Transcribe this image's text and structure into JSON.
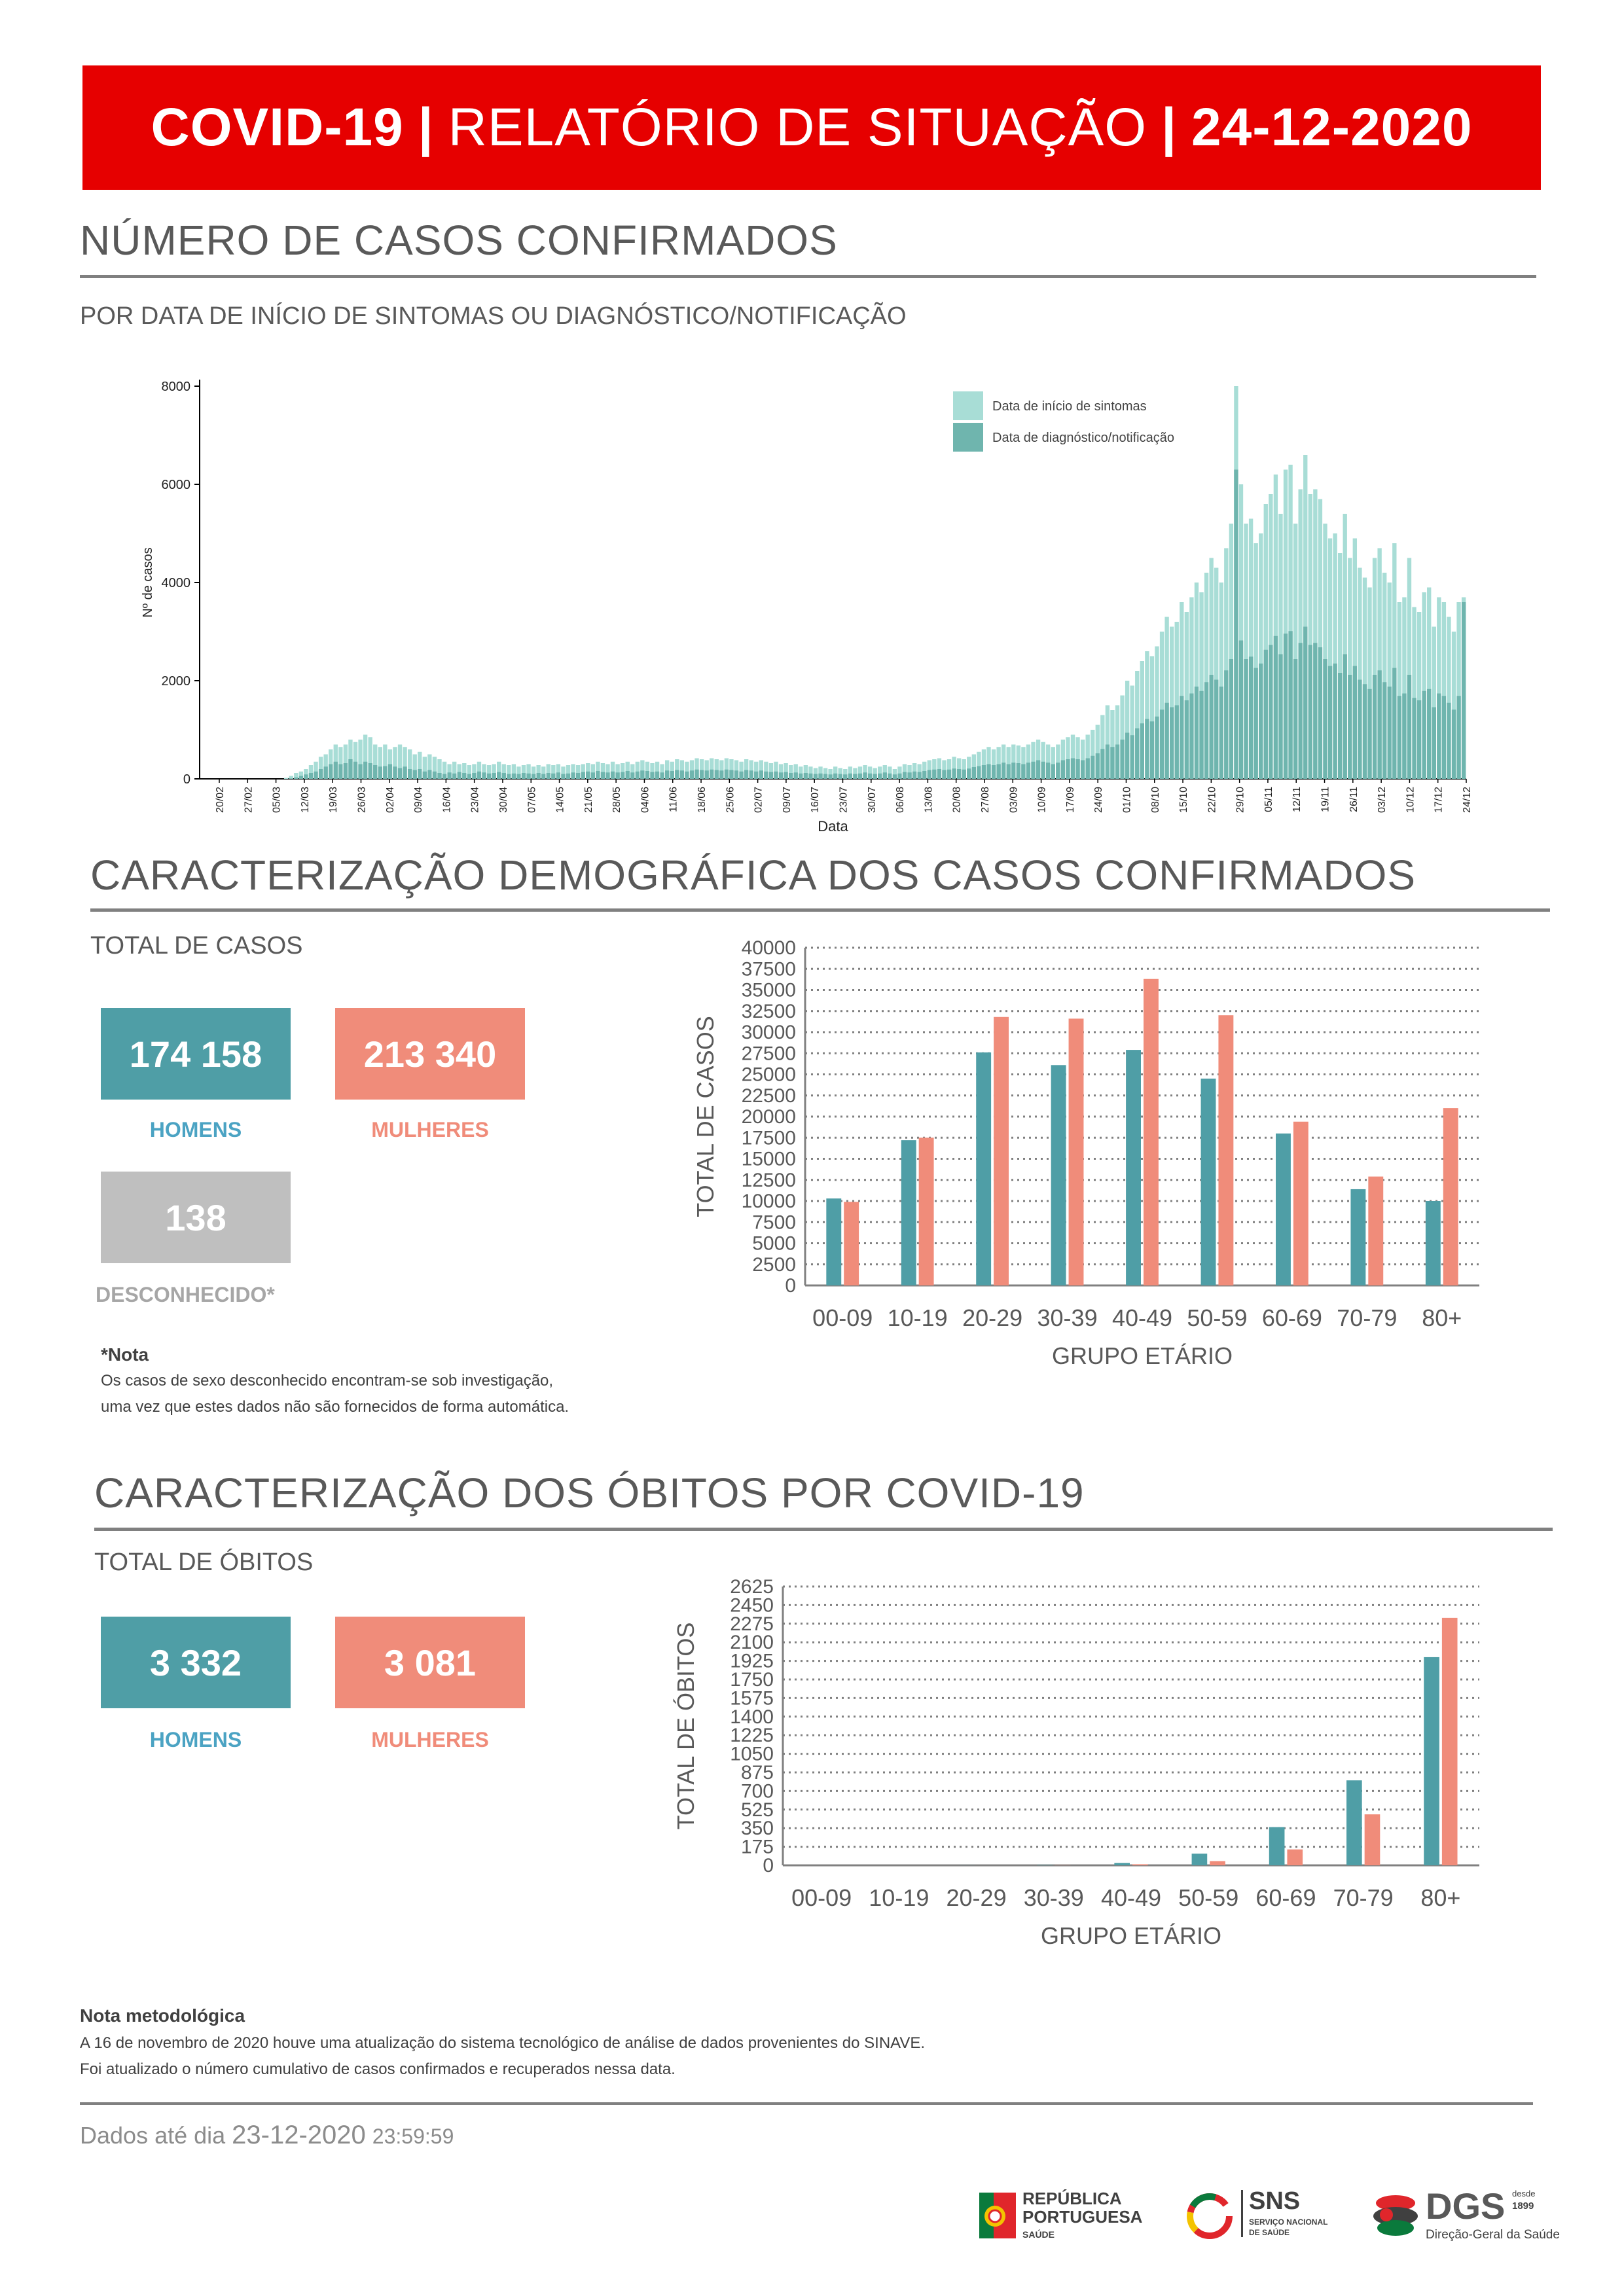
{
  "header": {
    "part1": "COVID-19",
    "separator": "|",
    "part2": "RELATÓRIO DE SITUAÇÃO",
    "date": "24-12-2020"
  },
  "section1": {
    "title": "NÚMERO DE CASOS CONFIRMADOS",
    "subtitle": "POR DATA DE INÍCIO DE SINTOMAS OU DIAGNÓSTICO/NOTIFICAÇÃO"
  },
  "section2": {
    "title": "CARACTERIZAÇÃO DEMOGRÁFICA DOS CASOS CONFIRMADOS",
    "subtitle": "TOTAL DE CASOS",
    "men_value": "174 158",
    "women_value": "213 340",
    "unknown_value": "138",
    "men_label": "HOMENS",
    "women_label": "MULHERES",
    "unknown_label": "DESCONHECIDO*",
    "note_title": "*Nota",
    "note_line1": "Os casos de sexo desconhecido encontram-se sob investigação,",
    "note_line2": "uma vez que estes dados não são fornecidos de forma automática."
  },
  "section3": {
    "title": "CARACTERIZAÇÃO DOS ÓBITOS POR COVID-19",
    "subtitle": "TOTAL DE ÓBITOS",
    "men_value": "3 332",
    "women_value": "3 081",
    "men_label": "HOMENS",
    "women_label": "MULHERES"
  },
  "methodology": {
    "title": "Nota metodológica",
    "line1": "A 16 de novembro de 2020 houve uma atualização do sistema tecnológico de análise de dados provenientes do SINAVE.",
    "line2": "Foi atualizado o número cumulativo de casos confirmados e recuperados nessa data."
  },
  "footer": {
    "prefix": "Dados até dia",
    "date": "23-12-2020",
    "time": "23:59:59"
  },
  "logos": {
    "republica_line1": "REPÚBLICA",
    "republica_line2": "PORTUGUESA",
    "republica_sub": "SAÚDE",
    "sns": "SNS",
    "sns_sub1": "SERVIÇO NACIONAL",
    "sns_sub2": "DE SAÚDE",
    "dgs": "DGS",
    "dgs_since1": "desde",
    "dgs_since2": "1899",
    "dgs_sub": "Direção-Geral da Saúde"
  },
  "colors": {
    "banner": "#e60000",
    "teal": "#4f9ea6",
    "salmon": "#f08c7a",
    "grey": "#bfbfbf",
    "light_teal": "#a8ddd6",
    "dark_teal": "#6fb5ae"
  },
  "chart_data": [
    {
      "type": "bar",
      "title": "",
      "xlabel": "Data",
      "ylabel": "Nº de casos",
      "ylim": [
        0,
        8000
      ],
      "yticks": [
        0,
        2000,
        4000,
        6000,
        8000
      ],
      "xtick_labels": [
        "20/02",
        "27/02",
        "05/03",
        "12/03",
        "19/03",
        "26/03",
        "02/04",
        "09/04",
        "16/04",
        "23/04",
        "30/04",
        "07/05",
        "14/05",
        "21/05",
        "28/05",
        "04/06",
        "11/06",
        "18/06",
        "25/06",
        "02/07",
        "09/07",
        "16/07",
        "23/07",
        "30/07",
        "06/08",
        "13/08",
        "20/08",
        "27/08",
        "03/09",
        "10/09",
        "17/09",
        "24/09",
        "01/10",
        "08/10",
        "15/10",
        "22/10",
        "29/10",
        "05/11",
        "12/11",
        "19/11",
        "26/11",
        "03/12",
        "10/12",
        "17/12",
        "24/12"
      ],
      "series": [
        {
          "name": "Data de início de sintomas",
          "values": [
            0,
            0,
            0,
            0,
            0,
            0,
            0,
            0,
            0,
            0,
            0,
            0,
            0,
            0,
            0,
            0,
            0,
            20,
            60,
            120,
            150,
            200,
            280,
            350,
            450,
            500,
            600,
            700,
            650,
            700,
            800,
            750,
            800,
            900,
            850,
            700,
            650,
            700,
            600,
            650,
            700,
            650,
            600,
            500,
            550,
            450,
            500,
            450,
            400,
            350,
            300,
            350,
            300,
            320,
            280,
            300,
            350,
            300,
            280,
            300,
            350,
            300,
            280,
            300,
            250,
            280,
            300,
            250,
            280,
            250,
            300,
            280,
            300,
            250,
            280,
            300,
            280,
            300,
            320,
            300,
            350,
            320,
            300,
            350,
            300,
            320,
            350,
            300,
            350,
            380,
            350,
            320,
            350,
            300,
            380,
            350,
            400,
            380,
            350,
            380,
            420,
            400,
            380,
            420,
            400,
            380,
            420,
            400,
            380,
            350,
            400,
            380,
            350,
            380,
            350,
            320,
            350,
            300,
            320,
            280,
            300,
            250,
            280,
            250,
            220,
            250,
            220,
            200,
            250,
            220,
            200,
            250,
            220,
            250,
            280,
            250,
            220,
            250,
            280,
            250,
            200,
            250,
            300,
            280,
            320,
            300,
            350,
            380,
            400,
            420,
            380,
            400,
            450,
            420,
            400,
            450,
            500,
            550,
            600,
            650,
            600,
            650,
            700,
            650,
            700,
            680,
            650,
            700,
            750,
            800,
            750,
            700,
            650,
            700,
            800,
            850,
            900,
            850,
            800,
            900,
            1000,
            1100,
            1300,
            1500,
            1400,
            1500,
            1700,
            2000,
            1900,
            2200,
            2400,
            2600,
            2500,
            2700,
            3000,
            3300,
            3100,
            3200,
            3600,
            3400,
            3700,
            4000,
            3800,
            4200,
            4500,
            4300,
            4000,
            4700,
            5200,
            8000,
            6000,
            5200,
            5300,
            4800,
            5000,
            5600,
            5800,
            6200,
            5400,
            6300,
            6400,
            5200,
            5900,
            6600,
            5800,
            5900,
            5700,
            5200,
            4900,
            5000,
            4600,
            5400,
            4500,
            4900,
            4300,
            4100,
            3900,
            4500,
            4700,
            4200,
            4000,
            4800,
            3600,
            3700,
            4500,
            3500,
            3400,
            3800,
            3900,
            3100,
            3700,
            3600,
            3300,
            3000,
            3600,
            3700
          ]
        },
        {
          "name": "Data de diagnóstico/notificação",
          "values": [
            0,
            0,
            0,
            0,
            0,
            0,
            0,
            0,
            0,
            0,
            0,
            0,
            0,
            0,
            0,
            0,
            0,
            0,
            10,
            30,
            60,
            90,
            120,
            150,
            200,
            250,
            300,
            350,
            300,
            320,
            400,
            350,
            300,
            350,
            320,
            280,
            250,
            260,
            300,
            250,
            220,
            250,
            200,
            180,
            200,
            150,
            180,
            150,
            120,
            100,
            130,
            110,
            140,
            120,
            100,
            120,
            150,
            130,
            110,
            120,
            140,
            120,
            100,
            110,
            100,
            120,
            110,
            100,
            120,
            100,
            120,
            110,
            130,
            100,
            110,
            130,
            120,
            140,
            150,
            130,
            160,
            140,
            130,
            150,
            130,
            140,
            160,
            130,
            150,
            170,
            160,
            140,
            150,
            130,
            170,
            160,
            180,
            170,
            150,
            170,
            190,
            180,
            170,
            190,
            180,
            170,
            190,
            180,
            170,
            150,
            180,
            170,
            150,
            170,
            150,
            140,
            150,
            130,
            140,
            120,
            130,
            110,
            120,
            110,
            100,
            110,
            100,
            90,
            110,
            100,
            90,
            110,
            100,
            110,
            130,
            110,
            100,
            110,
            130,
            110,
            90,
            110,
            140,
            130,
            150,
            140,
            160,
            180,
            190,
            200,
            180,
            190,
            210,
            200,
            190,
            210,
            240,
            260,
            280,
            300,
            280,
            300,
            330,
            300,
            330,
            320,
            300,
            330,
            350,
            380,
            350,
            330,
            300,
            330,
            380,
            400,
            420,
            400,
            380,
            420,
            470,
            520,
            610,
            700,
            650,
            700,
            800,
            940,
            890,
            1030,
            1130,
            1220,
            1170,
            1270,
            1410,
            1550,
            1460,
            1500,
            1690,
            1600,
            1740,
            1880,
            1790,
            1970,
            2120,
            2020,
            1880,
            2210,
            2440,
            6300,
            2820,
            2440,
            2490,
            2260,
            2350,
            2630,
            2730,
            2910,
            2540,
            2960,
            3010,
            2440,
            2770,
            3100,
            2730,
            2770,
            2680,
            2440,
            2300,
            2350,
            2160,
            2540,
            2120,
            2300,
            2020,
            1930,
            1830,
            2120,
            2210,
            1970,
            1880,
            2260,
            1690,
            1740,
            2120,
            1650,
            1600,
            1790,
            1830,
            1460,
            1740,
            1690,
            1550,
            1410,
            1690,
            3600
          ]
        }
      ]
    },
    {
      "type": "bar",
      "title": "",
      "xlabel": "GRUPO ETÁRIO",
      "ylabel": "TOTAL DE CASOS",
      "ylim": [
        0,
        40000
      ],
      "yticks": [
        0,
        2500,
        5000,
        7500,
        10000,
        12500,
        15000,
        17500,
        20000,
        22500,
        25000,
        27500,
        30000,
        32500,
        35000,
        37500,
        40000
      ],
      "categories": [
        "00-09",
        "10-19",
        "20-29",
        "30-39",
        "40-49",
        "50-59",
        "60-69",
        "70-79",
        "80+"
      ],
      "series": [
        {
          "name": "Homens",
          "values": [
            10300,
            17200,
            27600,
            26100,
            27900,
            24500,
            18000,
            11400,
            10000
          ]
        },
        {
          "name": "Mulheres",
          "values": [
            9900,
            17500,
            31800,
            31600,
            36300,
            32000,
            19400,
            12900,
            21000
          ]
        }
      ]
    },
    {
      "type": "bar",
      "title": "",
      "xlabel": "GRUPO ETÁRIO",
      "ylabel": "TOTAL DE ÓBITOS",
      "ylim": [
        0,
        2625
      ],
      "yticks": [
        0,
        175,
        350,
        525,
        700,
        875,
        1050,
        1225,
        1400,
        1575,
        1750,
        1925,
        2100,
        2275,
        2450,
        2625
      ],
      "categories": [
        "00-09",
        "10-19",
        "20-29",
        "30-39",
        "40-49",
        "50-59",
        "60-69",
        "70-79",
        "80+"
      ],
      "series": [
        {
          "name": "Homens",
          "values": [
            0,
            0,
            1,
            4,
            23,
            110,
            360,
            800,
            1960
          ]
        },
        {
          "name": "Mulheres",
          "values": [
            0,
            0,
            0,
            2,
            10,
            40,
            150,
            480,
            2330
          ]
        }
      ]
    }
  ]
}
